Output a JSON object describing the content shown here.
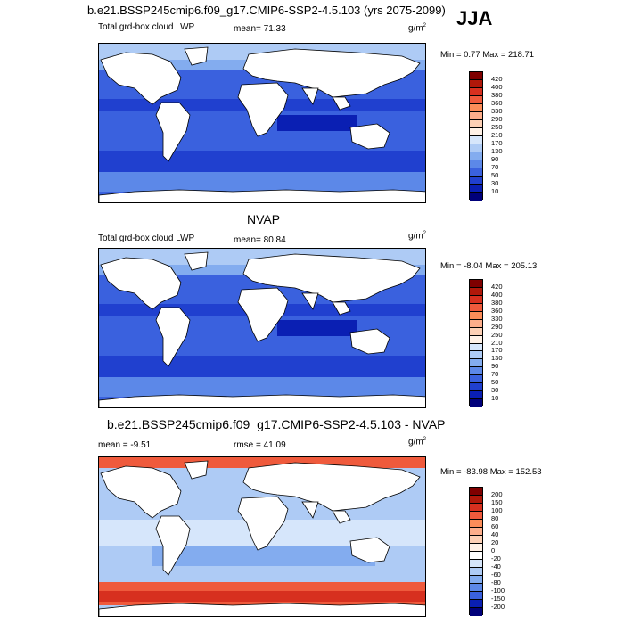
{
  "figure": {
    "main_title": "b.e21.BSSP245cmip6.f09_g17.CMIP6-SSP2-4.5.103 (yrs 2075-2099)",
    "season": "JJA"
  },
  "panels": [
    {
      "title": "",
      "variable": "Total grd-box cloud LWP",
      "mean_text": "mean=  71.33",
      "units_base": "g/m",
      "units_exp": "2",
      "minmax_text": "Min =   0.77 Max = 218.71",
      "colorbar": {
        "labels": [
          "420",
          "400",
          "380",
          "360",
          "330",
          "290",
          "250",
          "210",
          "170",
          "130",
          "90",
          "70",
          "50",
          "30",
          "10"
        ],
        "colors": [
          "#7f0000",
          "#b0180a",
          "#d7301f",
          "#ef5a3c",
          "#fc8d59",
          "#fdae8b",
          "#fdd0b5",
          "#fff1e6",
          "#d6e6fb",
          "#aecbf5",
          "#83acef",
          "#5c88e8",
          "#3a61de",
          "#2040cf",
          "#0a1fb3",
          "#00007a"
        ]
      }
    },
    {
      "title": "NVAP",
      "variable": "Total grd-box cloud LWP",
      "mean_text": "mean=  80.84",
      "units_base": "g/m",
      "units_exp": "2",
      "minmax_text": "Min =  -8.04 Max = 205.13",
      "colorbar": {
        "labels": [
          "420",
          "400",
          "380",
          "360",
          "330",
          "290",
          "250",
          "210",
          "170",
          "130",
          "90",
          "70",
          "50",
          "30",
          "10"
        ],
        "colors": [
          "#7f0000",
          "#b0180a",
          "#d7301f",
          "#ef5a3c",
          "#fc8d59",
          "#fdae8b",
          "#fdd0b5",
          "#fff1e6",
          "#d6e6fb",
          "#aecbf5",
          "#83acef",
          "#5c88e8",
          "#3a61de",
          "#2040cf",
          "#0a1fb3",
          "#00007a"
        ]
      }
    },
    {
      "title": "b.e21.BSSP245cmip6.f09_g17.CMIP6-SSP2-4.5.103 - NVAP",
      "variable": "",
      "mean_text": "mean =  -9.51",
      "rmse_text": "rmse =  41.09",
      "units_base": "g/m",
      "units_exp": "2",
      "minmax_text": "Min = -83.98 Max = 152.53",
      "colorbar": {
        "labels": [
          "200",
          "150",
          "100",
          "80",
          "60",
          "40",
          "20",
          "0",
          "-20",
          "-40",
          "-60",
          "-80",
          "-100",
          "-150",
          "-200"
        ],
        "colors": [
          "#7f0000",
          "#b0180a",
          "#d7301f",
          "#ef5a3c",
          "#fc8d59",
          "#fdae8b",
          "#fdd0b5",
          "#fff1e6",
          "#ffffff",
          "#d6e6fb",
          "#aecbf5",
          "#83acef",
          "#5c88e8",
          "#3a61de",
          "#0a1fb3",
          "#00007a"
        ]
      }
    }
  ],
  "colors": {
    "land": "#ffffff",
    "coast": "#000000"
  }
}
